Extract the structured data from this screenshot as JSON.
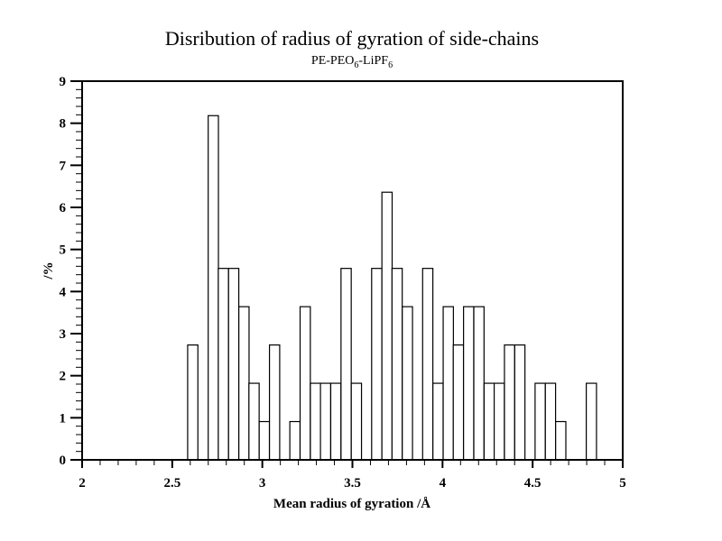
{
  "chart_data": {
    "type": "bar",
    "title": "Disribution of radius of gyration of side-chains",
    "subtitle_parts": [
      "PE-PEO",
      "6",
      "-LiPF",
      "6"
    ],
    "xlabel": "Mean radius of gyration /Å",
    "ylabel": "/%",
    "xlim": [
      2,
      5
    ],
    "ylim": [
      0,
      9
    ],
    "x_major_step": 0.5,
    "x_minor_step": 0.1,
    "y_major_step": 1,
    "y_minor_step": 0.2,
    "x_tick_labels": [
      "2",
      "2.5",
      "3",
      "3.5",
      "4",
      "4.5",
      "5"
    ],
    "y_tick_labels": [
      "0",
      "1",
      "2",
      "3",
      "4",
      "5",
      "6",
      "7",
      "8",
      "9"
    ],
    "grid": false,
    "legend": "none",
    "bin_width": 0.0567,
    "bar_fill": "#ffffff",
    "bar_stroke": "#000000",
    "x": [
      2.614,
      2.728,
      2.784,
      2.841,
      2.898,
      2.954,
      3.011,
      3.068,
      3.181,
      3.238,
      3.295,
      3.351,
      3.408,
      3.465,
      3.522,
      3.635,
      3.692,
      3.748,
      3.805,
      3.918,
      3.975,
      4.032,
      4.088,
      4.145,
      4.202,
      4.259,
      4.315,
      4.372,
      4.429,
      4.542,
      4.599,
      4.656,
      4.826
    ],
    "values": [
      2.73,
      8.18,
      4.55,
      4.55,
      3.64,
      1.82,
      0.91,
      2.73,
      0.91,
      3.64,
      1.82,
      1.82,
      1.82,
      4.55,
      1.82,
      4.55,
      6.36,
      4.55,
      3.64,
      4.55,
      1.82,
      3.64,
      2.73,
      3.64,
      3.64,
      1.82,
      1.82,
      2.73,
      2.73,
      1.82,
      1.82,
      0.91,
      1.82
    ]
  }
}
